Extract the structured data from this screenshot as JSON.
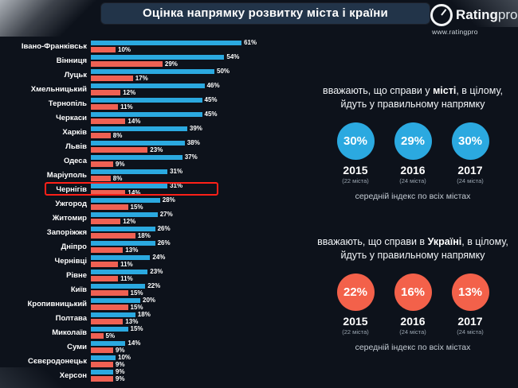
{
  "title": "Оцінка напрямку розвитку міста і країни",
  "logo": {
    "brand": "Rating",
    "brand_suffix": "pro",
    "url": "www.ratingpro"
  },
  "colors": {
    "background": "#131b26",
    "header_bg": "#223449",
    "city_bar": "#2BA9E0",
    "country_bar": "#EF6153",
    "highlight_box": "#FF2018"
  },
  "chart_data": {
    "type": "bar",
    "orientation": "horizontal",
    "unit": "%",
    "value_range": [
      0,
      61
    ],
    "legend_position": "none",
    "grid": false,
    "highlighted_category": "Чернігів",
    "series": [
      {
        "key": "city",
        "name": "справи у місті йдуть у правильному напрямку",
        "color": "#2BA9E0"
      },
      {
        "key": "country",
        "name": "справи в Україні йдуть у правильному напрямку",
        "color": "#EF6153"
      }
    ],
    "rows": [
      {
        "name": "Івано-Франківськ",
        "city": 61,
        "country": 10
      },
      {
        "name": "Вінниця",
        "city": 54,
        "country": 29
      },
      {
        "name": "Луцьк",
        "city": 50,
        "country": 17
      },
      {
        "name": "Хмельницький",
        "city": 46,
        "country": 12
      },
      {
        "name": "Тернопіль",
        "city": 45,
        "country": 11
      },
      {
        "name": "Черкаси",
        "city": 45,
        "country": 14
      },
      {
        "name": "Харків",
        "city": 39,
        "country": 8
      },
      {
        "name": "Львів",
        "city": 38,
        "country": 23
      },
      {
        "name": "Одеса",
        "city": 37,
        "country": 9
      },
      {
        "name": "Маріуполь",
        "city": 31,
        "country": 8
      },
      {
        "name": "Чернігів",
        "city": 31,
        "country": 14
      },
      {
        "name": "Ужгород",
        "city": 28,
        "country": 15
      },
      {
        "name": "Житомир",
        "city": 27,
        "country": 12
      },
      {
        "name": "Запоріжжя",
        "city": 26,
        "country": 18
      },
      {
        "name": "Дніпро",
        "city": 26,
        "country": 13
      },
      {
        "name": "Чернівці",
        "city": 24,
        "country": 11
      },
      {
        "name": "Рівне",
        "city": 23,
        "country": 11
      },
      {
        "name": "Київ",
        "city": 22,
        "country": 15
      },
      {
        "name": "Кропивницький",
        "city": 20,
        "country": 15
      },
      {
        "name": "Полтава",
        "city": 18,
        "country": 13
      },
      {
        "name": "Миколаїв",
        "city": 15,
        "country": 5
      },
      {
        "name": "Суми",
        "city": 14,
        "country": 9
      },
      {
        "name": "Сєвєродонецьк",
        "city": 10,
        "country": 9
      },
      {
        "name": "Херсон",
        "city": 9,
        "country": 9
      }
    ]
  },
  "panels": {
    "city": {
      "text_prefix": "вважають, що справи у ",
      "keyword": "місті",
      "text_suffix": ", в цілому, йдуть у правильному напрямку",
      "color": "#2BA9E0",
      "years": [
        {
          "value": "30%",
          "year": "2015",
          "note": "(22 міста)"
        },
        {
          "value": "29%",
          "year": "2016",
          "note": "(24 міста)"
        },
        {
          "value": "30%",
          "year": "2017",
          "note": "(24 міста)"
        }
      ],
      "caption": "середній індекс по всіх містах"
    },
    "country": {
      "text_prefix": "вважають, що справи в ",
      "keyword": "Україні",
      "text_suffix": ", в цілому, йдуть у правильному напрямку",
      "color": "#F3614A",
      "years": [
        {
          "value": "22%",
          "year": "2015",
          "note": "(22 міста)"
        },
        {
          "value": "16%",
          "year": "2016",
          "note": "(24 міста)"
        },
        {
          "value": "13%",
          "year": "2017",
          "note": "(24 міста)"
        }
      ],
      "caption": "середній індекс по всіх містах"
    }
  }
}
